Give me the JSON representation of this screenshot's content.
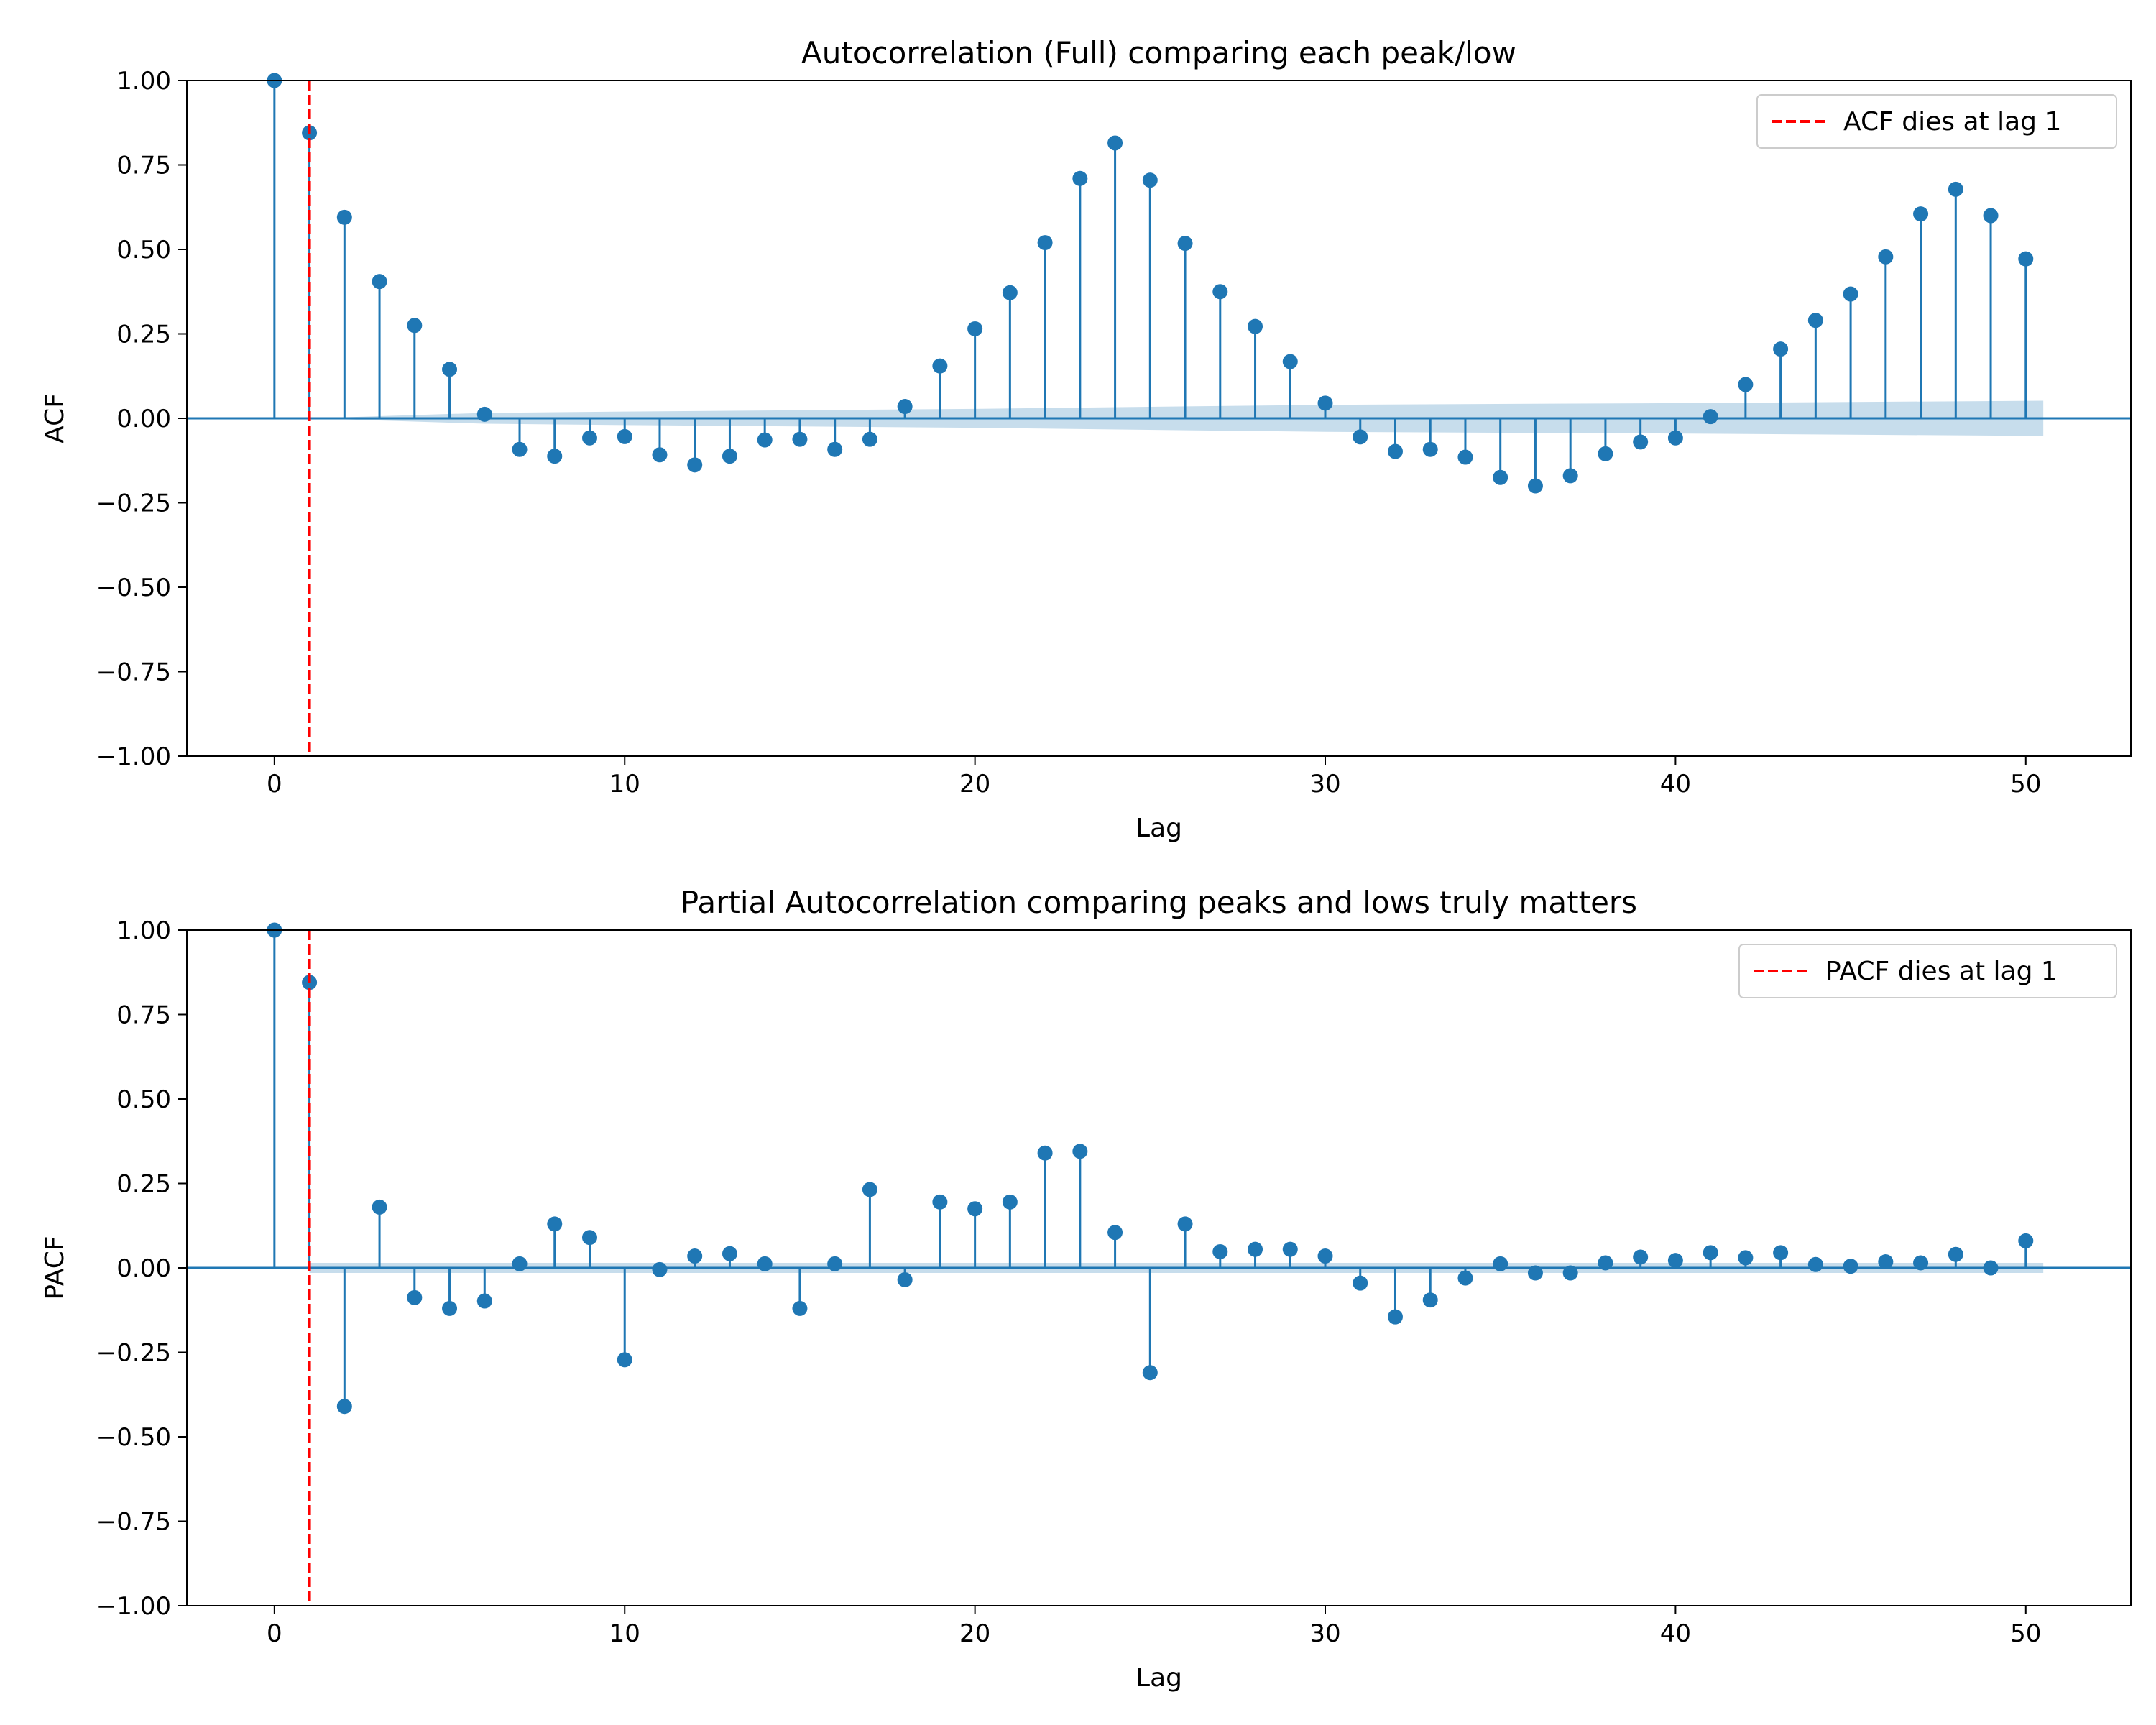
{
  "colors": {
    "stem": "#1f77b4",
    "band": "#1f77b4",
    "cutoff": "#ff0000",
    "axis": "#000000",
    "background": "#ffffff"
  },
  "chart_data": [
    {
      "type": "stem",
      "title": "Autocorrelation (Full) comparing each peak/low",
      "xlabel": "Lag",
      "ylabel": "ACF",
      "xlim": [
        -2.5,
        53
      ],
      "ylim": [
        -1,
        1
      ],
      "xticks": [
        0,
        10,
        20,
        30,
        40,
        50
      ],
      "xtick_labels": [
        "0",
        "10",
        "20",
        "30",
        "40",
        "50"
      ],
      "yticks": [
        1,
        0.75,
        0.5,
        0.25,
        0,
        -0.25,
        -0.5,
        -0.75,
        -1
      ],
      "ytick_labels": [
        "1.00",
        "0.75",
        "0.50",
        "0.25",
        "0.00",
        "−0.25",
        "−0.50",
        "−0.75",
        "−1.00"
      ],
      "grid": false,
      "legend": {
        "placement": "top-right",
        "label": "ACF dies at lag 1"
      },
      "cutoff_lag": 1,
      "lags": [
        0,
        1,
        2,
        3,
        4,
        5,
        6,
        7,
        8,
        9,
        10,
        11,
        12,
        13,
        14,
        15,
        16,
        17,
        18,
        19,
        20,
        21,
        22,
        23,
        24,
        25,
        26,
        27,
        28,
        29,
        30,
        31,
        32,
        33,
        34,
        35,
        36,
        37,
        38,
        39,
        40,
        41,
        42,
        43,
        44,
        45,
        46,
        47,
        48,
        49,
        50
      ],
      "values": [
        1.0,
        0.845,
        0.595,
        0.405,
        0.275,
        0.145,
        0.012,
        -0.092,
        -0.112,
        -0.058,
        -0.054,
        -0.108,
        -0.138,
        -0.112,
        -0.064,
        -0.062,
        -0.092,
        -0.062,
        0.035,
        0.155,
        0.265,
        0.372,
        0.52,
        0.71,
        0.815,
        0.705,
        0.518,
        0.375,
        0.272,
        0.168,
        0.045,
        -0.055,
        -0.098,
        -0.092,
        -0.115,
        -0.175,
        -0.2,
        -0.17,
        -0.105,
        -0.07,
        -0.058,
        0.005,
        0.1,
        0.205,
        0.29,
        0.368,
        0.478,
        0.605,
        0.678,
        0.6,
        0.472
      ],
      "confidence_band": [
        [
          1,
          0.0
        ],
        [
          6,
          0.016
        ],
        [
          10,
          0.02
        ],
        [
          20,
          0.028
        ],
        [
          30,
          0.04
        ],
        [
          40,
          0.045
        ],
        [
          50.5,
          0.052
        ]
      ]
    },
    {
      "type": "stem",
      "title": "Partial Autocorrelation comparing peaks and lows truly matters",
      "xlabel": "Lag",
      "ylabel": "PACF",
      "xlim": [
        -2.5,
        53
      ],
      "ylim": [
        -1,
        1
      ],
      "xticks": [
        0,
        10,
        20,
        30,
        40,
        50
      ],
      "xtick_labels": [
        "0",
        "10",
        "20",
        "30",
        "40",
        "50"
      ],
      "yticks": [
        1,
        0.75,
        0.5,
        0.25,
        0,
        -0.25,
        -0.5,
        -0.75,
        -1
      ],
      "ytick_labels": [
        "1.00",
        "0.75",
        "0.50",
        "0.25",
        "0.00",
        "−0.25",
        "−0.50",
        "−0.75",
        "−1.00"
      ],
      "grid": false,
      "legend": {
        "placement": "top-right",
        "label": "PACF dies at lag 1"
      },
      "cutoff_lag": 1,
      "lags": [
        0,
        1,
        2,
        3,
        4,
        5,
        6,
        7,
        8,
        9,
        10,
        11,
        12,
        13,
        14,
        15,
        16,
        17,
        18,
        19,
        20,
        21,
        22,
        23,
        24,
        25,
        26,
        27,
        28,
        29,
        30,
        31,
        32,
        33,
        34,
        35,
        36,
        37,
        38,
        39,
        40,
        41,
        42,
        43,
        44,
        45,
        46,
        47,
        48,
        49,
        50
      ],
      "values": [
        1.0,
        0.845,
        -0.41,
        0.18,
        -0.088,
        -0.12,
        -0.098,
        0.012,
        0.13,
        0.09,
        -0.272,
        -0.005,
        0.035,
        0.042,
        0.012,
        -0.12,
        0.012,
        0.232,
        -0.035,
        0.195,
        0.175,
        0.195,
        0.34,
        0.345,
        0.105,
        -0.31,
        0.13,
        0.048,
        0.055,
        0.055,
        0.035,
        -0.045,
        -0.145,
        -0.095,
        -0.03,
        0.012,
        -0.015,
        -0.015,
        0.015,
        0.032,
        0.022,
        0.045,
        0.03,
        0.045,
        0.01,
        0.005,
        0.018,
        0.015,
        0.04,
        0.0,
        0.08
      ],
      "confidence_band": [
        [
          1,
          0.015
        ],
        [
          10,
          0.015
        ],
        [
          30,
          0.015
        ],
        [
          50.5,
          0.015
        ]
      ]
    }
  ]
}
